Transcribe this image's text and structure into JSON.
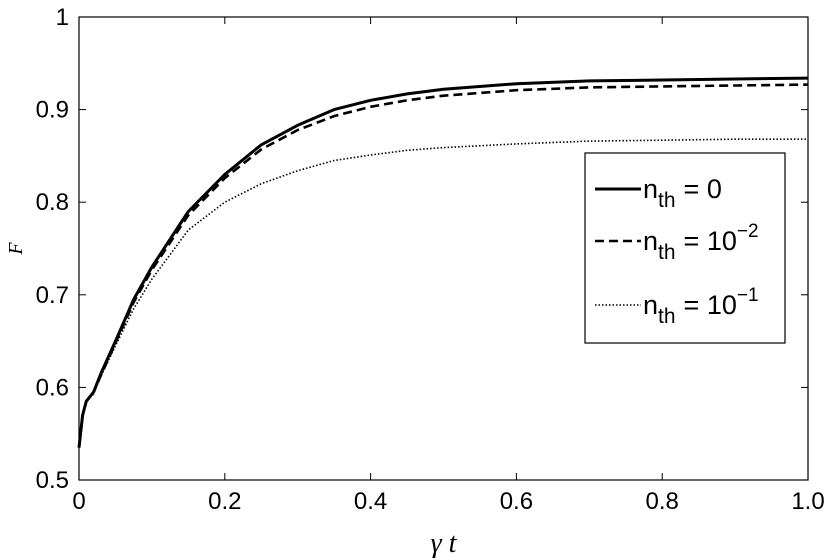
{
  "chart_data": {
    "type": "line",
    "xlabel": "γ t",
    "ylabel": "F",
    "xlim": [
      0,
      1.0
    ],
    "ylim": [
      0.5,
      1.0
    ],
    "xticks": [
      0,
      0.2,
      0.4,
      0.6,
      0.8,
      1.0
    ],
    "xtick_labels": [
      "0",
      "0.2",
      "0.4",
      "0.6",
      "0.8",
      "1.0"
    ],
    "yticks": [
      0.5,
      0.6,
      0.7,
      0.8,
      0.9,
      1.0
    ],
    "ytick_labels": [
      "0.5",
      "0.6",
      "0.7",
      "0.8",
      "0.9",
      "1"
    ],
    "grid": false,
    "legend_position": "right",
    "series": [
      {
        "name": "n_th = 0",
        "label_base": "n",
        "label_sub": "th",
        "label_value": "= 0",
        "label_exp": "",
        "style": "solid",
        "x": [
          0,
          0.005,
          0.01,
          0.02,
          0.03,
          0.05,
          0.075,
          0.1,
          0.15,
          0.2,
          0.25,
          0.3,
          0.35,
          0.4,
          0.45,
          0.5,
          0.6,
          0.7,
          0.8,
          0.9,
          1.0
        ],
        "y": [
          0.535,
          0.57,
          0.585,
          0.595,
          0.615,
          0.65,
          0.695,
          0.73,
          0.79,
          0.83,
          0.862,
          0.883,
          0.9,
          0.91,
          0.917,
          0.922,
          0.928,
          0.931,
          0.932,
          0.933,
          0.934
        ]
      },
      {
        "name": "n_th = 10^-2",
        "label_base": "n",
        "label_sub": "th",
        "label_value": "= 10",
        "label_exp": "−2",
        "style": "dashed",
        "x": [
          0,
          0.005,
          0.01,
          0.02,
          0.03,
          0.05,
          0.075,
          0.1,
          0.15,
          0.2,
          0.25,
          0.3,
          0.35,
          0.4,
          0.45,
          0.5,
          0.6,
          0.7,
          0.8,
          0.9,
          1.0
        ],
        "y": [
          0.535,
          0.57,
          0.585,
          0.595,
          0.613,
          0.648,
          0.692,
          0.727,
          0.786,
          0.826,
          0.857,
          0.878,
          0.893,
          0.903,
          0.91,
          0.915,
          0.921,
          0.924,
          0.925,
          0.926,
          0.927
        ]
      },
      {
        "name": "n_th = 10^-1",
        "label_base": "n",
        "label_sub": "th",
        "label_value": "= 10",
        "label_exp": "−1",
        "style": "dotted",
        "x": [
          0,
          0.005,
          0.01,
          0.02,
          0.03,
          0.05,
          0.075,
          0.1,
          0.15,
          0.2,
          0.25,
          0.3,
          0.35,
          0.4,
          0.45,
          0.5,
          0.6,
          0.7,
          0.8,
          0.9,
          1.0
        ],
        "y": [
          0.535,
          0.57,
          0.585,
          0.593,
          0.612,
          0.645,
          0.685,
          0.717,
          0.77,
          0.8,
          0.82,
          0.834,
          0.845,
          0.851,
          0.856,
          0.859,
          0.863,
          0.866,
          0.867,
          0.868,
          0.868
        ]
      }
    ]
  }
}
